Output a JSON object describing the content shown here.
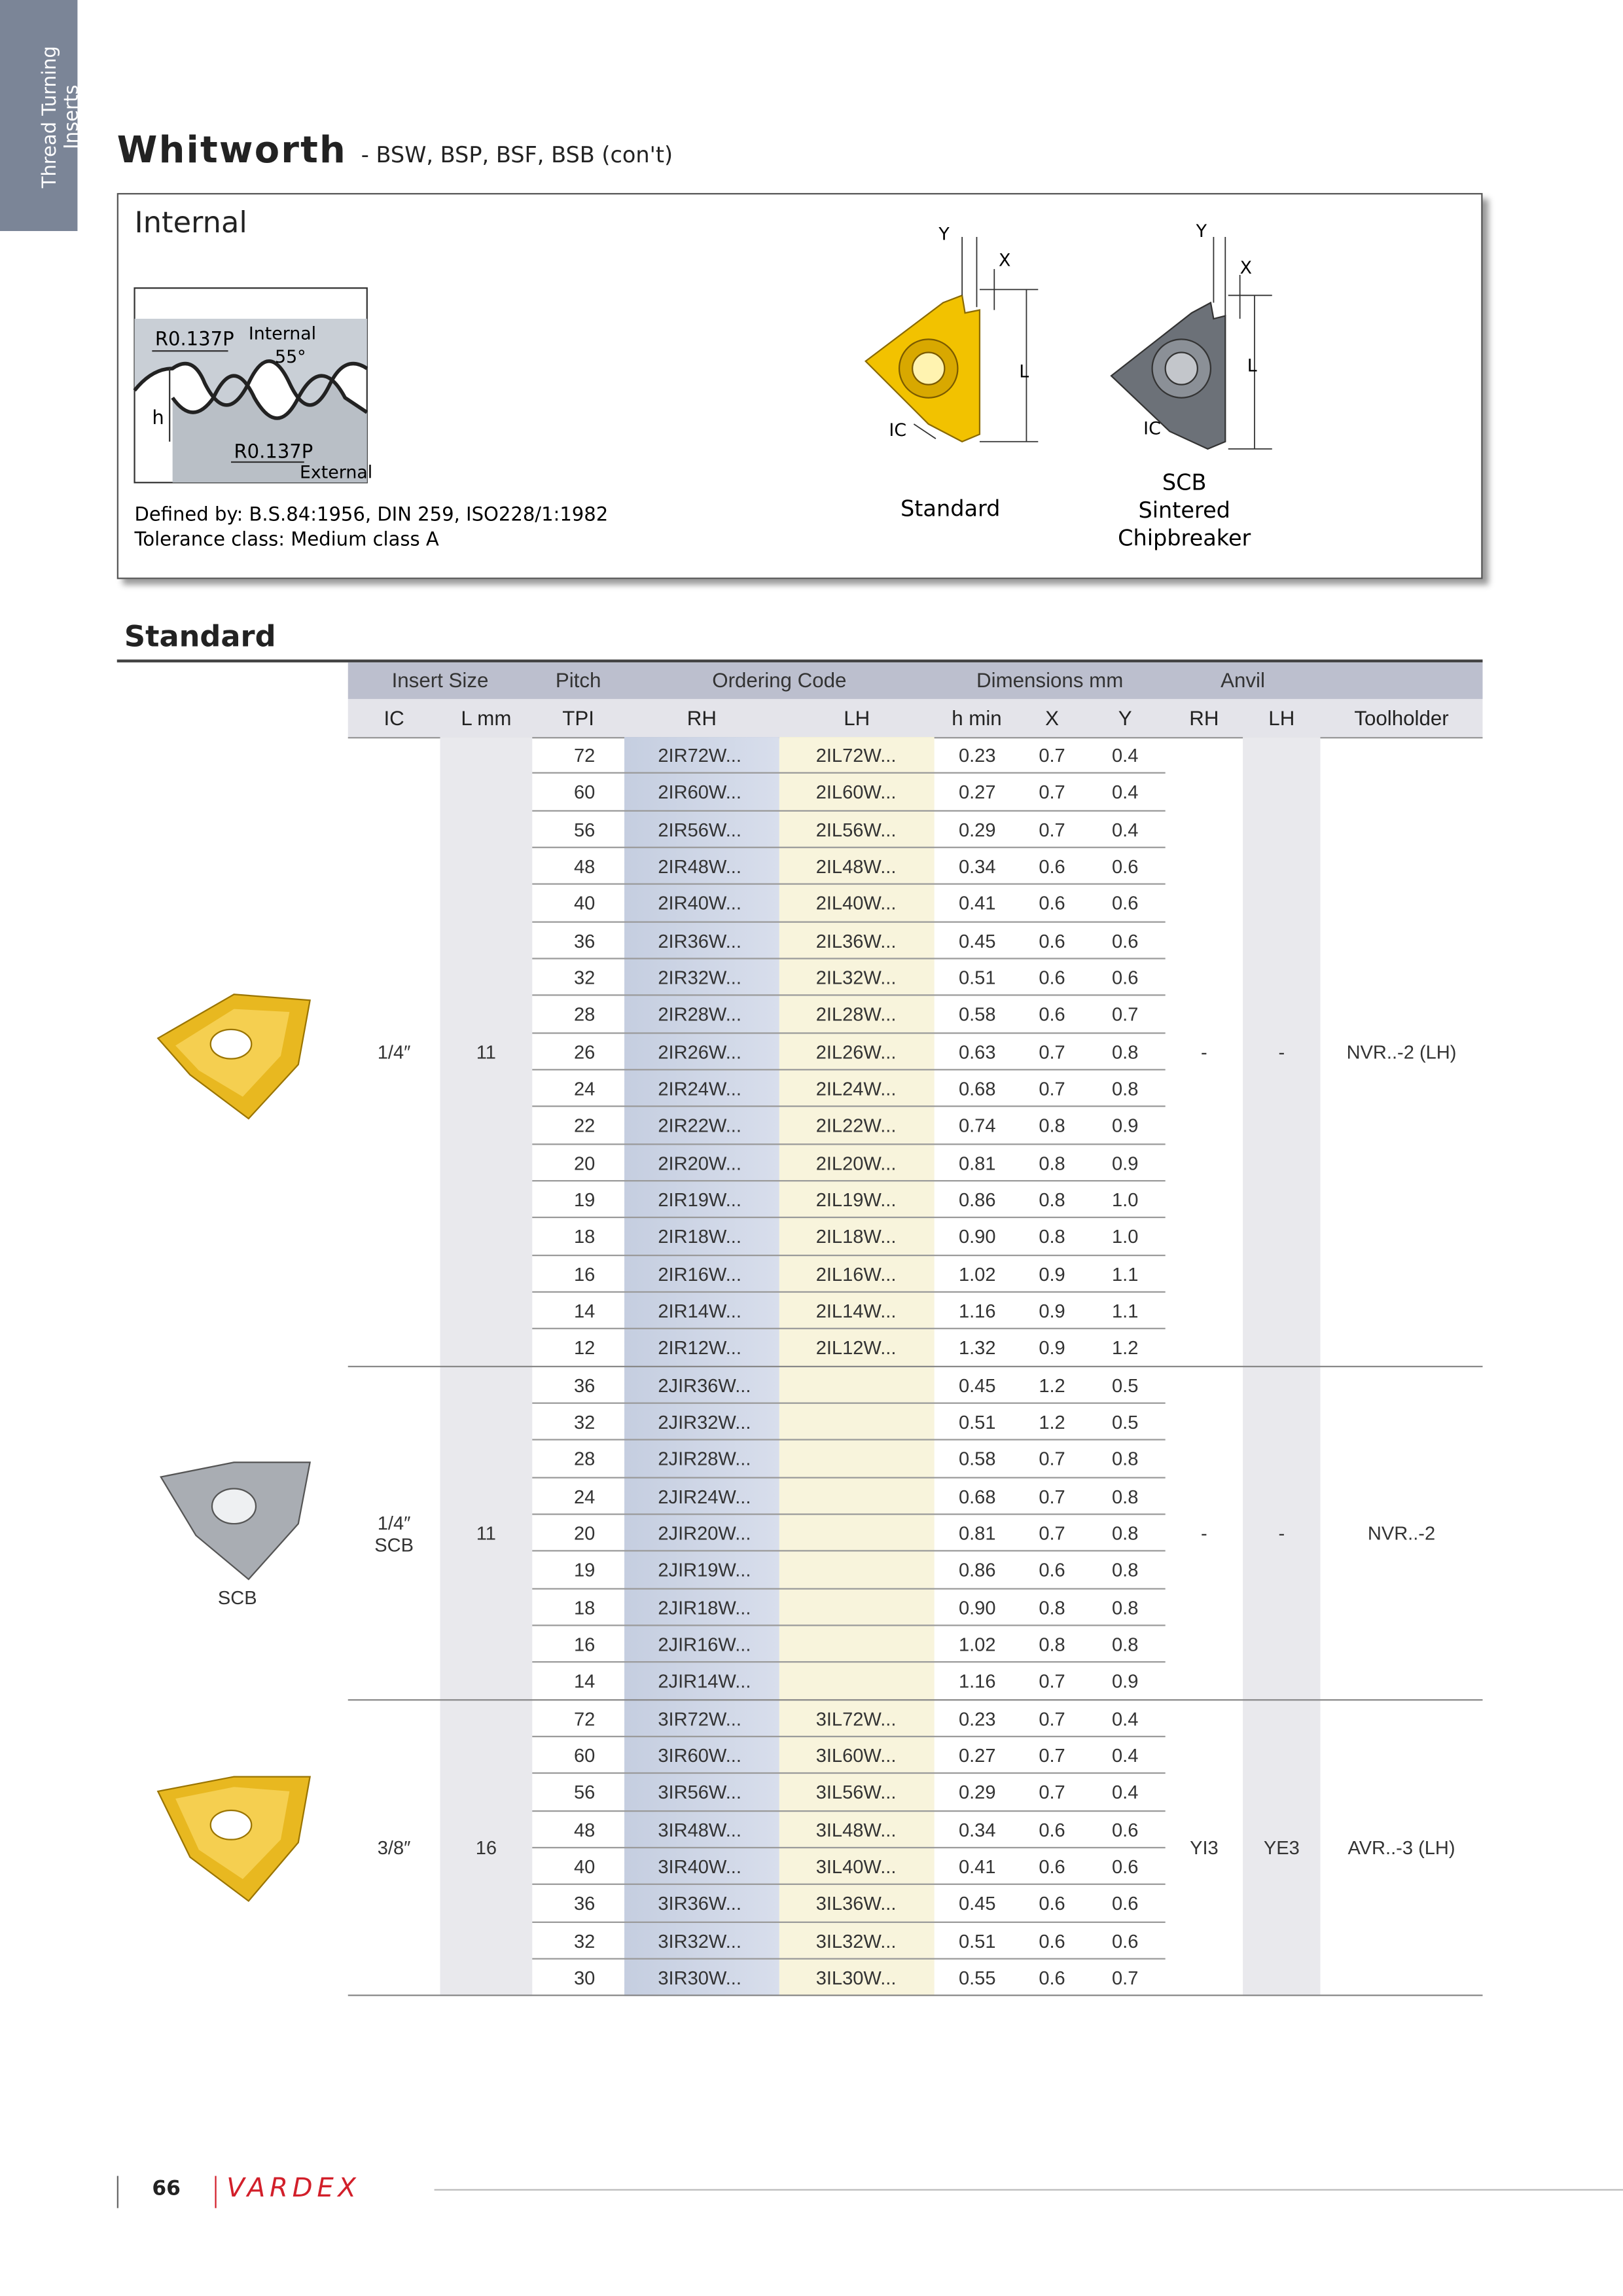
{
  "sidebar": {
    "line1": "Thread Turning",
    "line2": "Inserts"
  },
  "header": {
    "title": "Whitworth",
    "subtitle": "- BSW, BSP, BSF, BSB (con't)"
  },
  "internal_box": {
    "title": "Internal",
    "profile": {
      "radius_top": "R0.137P",
      "internal": "Internal",
      "angle": "55°",
      "h": "h",
      "radius_bottom": "R0.137P",
      "external": "External"
    },
    "defined_by": "Defined by: B.S.84:1956, DIN 259, ISO228/1:1982",
    "tolerance": "Tolerance class: Medium class A",
    "standard_insert": {
      "y": "Y",
      "x": "X",
      "l": "L",
      "ic": "IC",
      "caption": "Standard"
    },
    "scb_insert": {
      "y": "Y",
      "x": "X",
      "l": "L",
      "ic": "IC",
      "caption": [
        "SCB",
        "Sintered",
        "Chipbreaker"
      ]
    }
  },
  "section_title": "Standard",
  "table": {
    "group_headers": [
      "Insert Size",
      "Pitch",
      "Ordering Code",
      "Dimensions mm",
      "Anvil"
    ],
    "column_headers": [
      "IC",
      "L mm",
      "TPI",
      "RH",
      "LH",
      "h min",
      "X",
      "Y",
      "RH",
      "LH",
      "Toolholder"
    ],
    "groups": [
      {
        "ic": "1/4″",
        "l": "11",
        "anvil_rh": "-",
        "anvil_lh": "-",
        "toolholder": "NVR..-2 (LH)",
        "rows": [
          [
            "72",
            "2IR72W...",
            "2IL72W...",
            "0.23",
            "0.7",
            "0.4"
          ],
          [
            "60",
            "2IR60W...",
            "2IL60W...",
            "0.27",
            "0.7",
            "0.4"
          ],
          [
            "56",
            "2IR56W...",
            "2IL56W...",
            "0.29",
            "0.7",
            "0.4"
          ],
          [
            "48",
            "2IR48W...",
            "2IL48W...",
            "0.34",
            "0.6",
            "0.6"
          ],
          [
            "40",
            "2IR40W...",
            "2IL40W...",
            "0.41",
            "0.6",
            "0.6"
          ],
          [
            "36",
            "2IR36W...",
            "2IL36W...",
            "0.45",
            "0.6",
            "0.6"
          ],
          [
            "32",
            "2IR32W...",
            "2IL32W...",
            "0.51",
            "0.6",
            "0.6"
          ],
          [
            "28",
            "2IR28W...",
            "2IL28W...",
            "0.58",
            "0.6",
            "0.7"
          ],
          [
            "26",
            "2IR26W...",
            "2IL26W...",
            "0.63",
            "0.7",
            "0.8"
          ],
          [
            "24",
            "2IR24W...",
            "2IL24W...",
            "0.68",
            "0.7",
            "0.8"
          ],
          [
            "22",
            "2IR22W...",
            "2IL22W...",
            "0.74",
            "0.8",
            "0.9"
          ],
          [
            "20",
            "2IR20W...",
            "2IL20W...",
            "0.81",
            "0.8",
            "0.9"
          ],
          [
            "19",
            "2IR19W...",
            "2IL19W...",
            "0.86",
            "0.8",
            "1.0"
          ],
          [
            "18",
            "2IR18W...",
            "2IL18W...",
            "0.90",
            "0.8",
            "1.0"
          ],
          [
            "16",
            "2IR16W...",
            "2IL16W...",
            "1.02",
            "0.9",
            "1.1"
          ],
          [
            "14",
            "2IR14W...",
            "2IL14W...",
            "1.16",
            "0.9",
            "1.1"
          ],
          [
            "12",
            "2IR12W...",
            "2IL12W...",
            "1.32",
            "0.9",
            "1.2"
          ]
        ]
      },
      {
        "ic": "1/4″\nSCB",
        "l": "11",
        "anvil_rh": "-",
        "anvil_lh": "-",
        "toolholder": "NVR..-2",
        "image_caption": "SCB",
        "rows": [
          [
            "36",
            "2JIR36W...",
            null,
            "0.45",
            "1.2",
            "0.5"
          ],
          [
            "32",
            "2JIR32W...",
            null,
            "0.51",
            "1.2",
            "0.5"
          ],
          [
            "28",
            "2JIR28W...",
            null,
            "0.58",
            "0.7",
            "0.8"
          ],
          [
            "24",
            "2JIR24W...",
            null,
            "0.68",
            "0.7",
            "0.8"
          ],
          [
            "20",
            "2JIR20W...",
            null,
            "0.81",
            "0.7",
            "0.8"
          ],
          [
            "19",
            "2JIR19W...",
            null,
            "0.86",
            "0.6",
            "0.8"
          ],
          [
            "18",
            "2JIR18W...",
            null,
            "0.90",
            "0.8",
            "0.8"
          ],
          [
            "16",
            "2JIR16W...",
            null,
            "1.02",
            "0.8",
            "0.8"
          ],
          [
            "14",
            "2JIR14W...",
            null,
            "1.16",
            "0.7",
            "0.9"
          ]
        ]
      },
      {
        "ic": "3/8″",
        "l": "16",
        "anvil_rh": "YI3",
        "anvil_lh": "YE3",
        "toolholder": "AVR..-3 (LH)",
        "rows": [
          [
            "72",
            "3IR72W...",
            "3IL72W...",
            "0.23",
            "0.7",
            "0.4"
          ],
          [
            "60",
            "3IR60W...",
            "3IL60W...",
            "0.27",
            "0.7",
            "0.4"
          ],
          [
            "56",
            "3IR56W...",
            "3IL56W...",
            "0.29",
            "0.7",
            "0.4"
          ],
          [
            "48",
            "3IR48W...",
            "3IL48W...",
            "0.34",
            "0.6",
            "0.6"
          ],
          [
            "40",
            "3IR40W...",
            "3IL40W...",
            "0.41",
            "0.6",
            "0.6"
          ],
          [
            "36",
            "3IR36W...",
            "3IL36W...",
            "0.45",
            "0.6",
            "0.6"
          ],
          [
            "32",
            "3IR32W...",
            "3IL32W...",
            "0.51",
            "0.6",
            "0.6"
          ],
          [
            "30",
            "3IR30W...",
            "3IL30W...",
            "0.55",
            "0.6",
            "0.7"
          ]
        ]
      }
    ]
  },
  "footer": {
    "page": "66",
    "brand": "VARDEX"
  }
}
